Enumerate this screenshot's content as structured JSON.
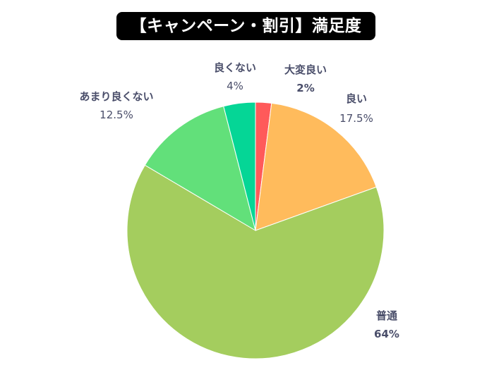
{
  "chart_data": {
    "type": "pie",
    "title": "【キャンペーン・割引】満足度",
    "start_angle": "top, clockwise",
    "slices": [
      {
        "label": "大変良い",
        "value": 2,
        "value_label": "2%",
        "color": "#ff5a5a",
        "bold_value": true
      },
      {
        "label": "良い",
        "value": 17.5,
        "value_label": "17.5%",
        "color": "#ffbb5c",
        "bold_value": false
      },
      {
        "label": "普通",
        "value": 64,
        "value_label": "64%",
        "color": "#a4cd5e",
        "bold_value": true
      },
      {
        "label": "あまり良くない",
        "value": 12.5,
        "value_label": "12.5%",
        "color": "#62e07a",
        "bold_value": false
      },
      {
        "label": "良くない",
        "value": 4,
        "value_label": "4%",
        "color": "#05d696",
        "bold_value": false
      }
    ],
    "label_color": "#4a4e6a"
  }
}
